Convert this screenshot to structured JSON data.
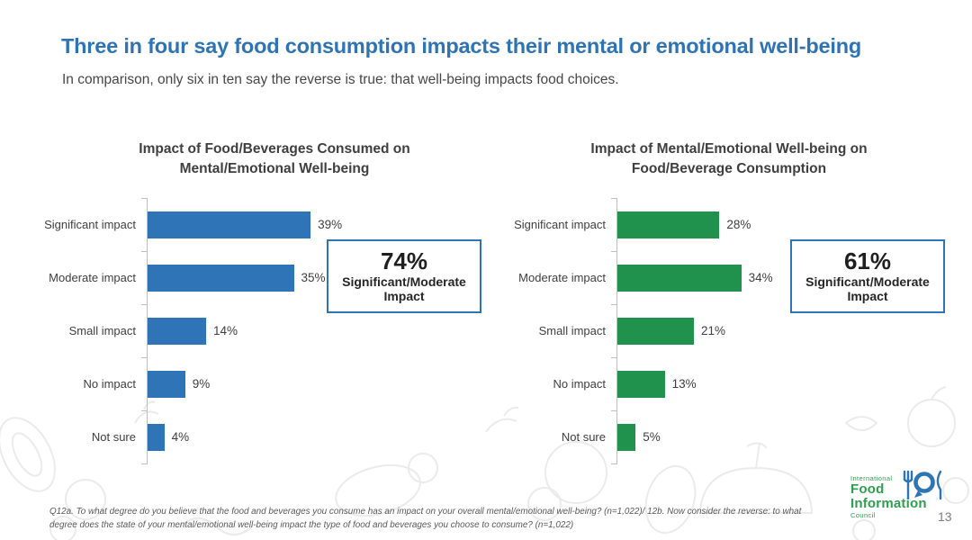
{
  "slide": {
    "title": "Three in four say food consumption impacts their mental or emotional well-being",
    "subtitle": "In comparison, only six in ten say the reverse is true: that well-being impacts food choices.",
    "footnote": "Q12a. To what degree do you believe that the food and beverages you consume has an impact on your overall mental/emotional well-being? (n=1,022)/ 12b. Now consider the reverse: to what degree does the state of your mental/emotional well-being impact the type of food and beverages you choose to consume? (n=1,022)",
    "page_number": "13"
  },
  "colors": {
    "title_blue": "#2E74B5",
    "bar_blue": "#2E74B6",
    "bar_green": "#21914E",
    "axis_gray": "#BFBFBF",
    "callout_border": "#2E75B6",
    "logo_green": "#2F9E4F",
    "logo_icon_blue": "#2E75B6"
  },
  "chart_data": [
    {
      "type": "bar",
      "orientation": "horizontal",
      "title": "Impact of Food/Beverages Consumed on Mental/Emotional Well-being",
      "categories": [
        "Significant impact",
        "Moderate impact",
        "Small impact",
        "No impact",
        "Not sure"
      ],
      "values": [
        39,
        35,
        14,
        9,
        4
      ],
      "value_labels": [
        "39%",
        "35%",
        "14%",
        "9%",
        "4%"
      ],
      "bar_color": "#2E74B6",
      "xlim": [
        0,
        42
      ],
      "grid": false,
      "callout": {
        "value": "74%",
        "label": "Significant/Moderate Impact"
      }
    },
    {
      "type": "bar",
      "orientation": "horizontal",
      "title": "Impact of Mental/Emotional Well-being on Food/Beverage Consumption",
      "categories": [
        "Significant impact",
        "Moderate impact",
        "Small impact",
        "No impact",
        "Not sure"
      ],
      "values": [
        28,
        34,
        21,
        13,
        5
      ],
      "value_labels": [
        "28%",
        "34%",
        "21%",
        "13%",
        "5%"
      ],
      "bar_color": "#21914E",
      "xlim": [
        0,
        42
      ],
      "grid": false,
      "callout": {
        "value": "61%",
        "label": "Significant/Moderate Impact"
      }
    }
  ],
  "logo": {
    "line1": "International",
    "line2": "Food",
    "line3": "Information",
    "line4": "Council"
  }
}
